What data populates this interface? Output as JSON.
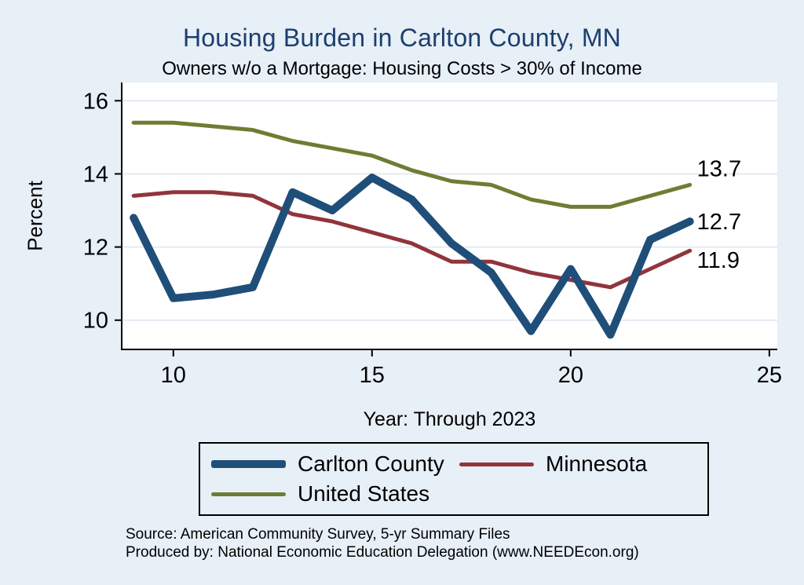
{
  "chart_data": {
    "type": "line",
    "title": "Housing Burden in Carlton County, MN",
    "subtitle": "Owners w/o a Mortgage: Housing Costs > 30% of Income",
    "xlabel": "Year: Through 2023",
    "ylabel": "Percent",
    "x": [
      9,
      10,
      11,
      12,
      13,
      14,
      15,
      16,
      17,
      18,
      19,
      20,
      21,
      22,
      23
    ],
    "x_ticks": [
      10,
      15,
      20,
      25
    ],
    "y_ticks": [
      10,
      12,
      14,
      16
    ],
    "xlim": [
      8.7,
      25.2
    ],
    "ylim": [
      9.2,
      16.5
    ],
    "grid": true,
    "legend_position": "bottom",
    "series": [
      {
        "name": "Carlton County",
        "color": "#1f4e79",
        "width": 10,
        "values": [
          12.8,
          10.6,
          10.7,
          10.9,
          13.5,
          13.0,
          13.9,
          13.3,
          12.1,
          11.3,
          9.7,
          11.4,
          9.6,
          12.2,
          12.7
        ],
        "end_label": "12.7"
      },
      {
        "name": "Minnesota",
        "color": "#90353b",
        "width": 5,
        "values": [
          13.4,
          13.5,
          13.5,
          13.4,
          12.9,
          12.7,
          12.4,
          12.1,
          11.6,
          11.6,
          11.3,
          11.1,
          10.9,
          11.4,
          11.9
        ],
        "end_label": "11.9"
      },
      {
        "name": "United States",
        "color": "#6d7d33",
        "width": 5,
        "values": [
          15.4,
          15.4,
          15.3,
          15.2,
          14.9,
          14.7,
          14.5,
          14.1,
          13.8,
          13.7,
          13.3,
          13.1,
          13.1,
          13.4,
          13.7
        ],
        "end_label": "13.7"
      }
    ]
  },
  "notes": {
    "source": "Source: American Community Survey, 5-yr Summary Files",
    "produced_by": "Produced by: National Economic Education Delegation (www.NEEDEcon.org)"
  },
  "colors": {
    "background": "#e7eff7",
    "title": "#1c3f6e",
    "text": "#000000",
    "axis": "#000000",
    "gridline": "#dce6f0",
    "plot_background": "#ffffff"
  }
}
